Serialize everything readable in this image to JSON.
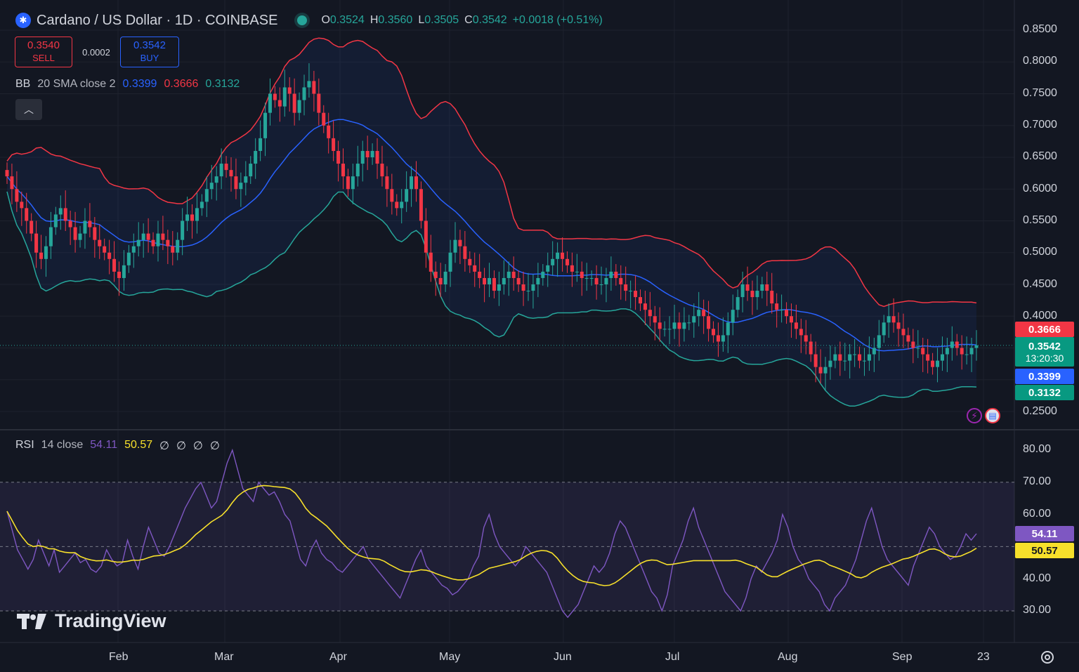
{
  "header": {
    "title": "Cardano / US Dollar · 1D · COINBASE",
    "ohlc": [
      {
        "k": "O",
        "v": "0.3524"
      },
      {
        "k": "H",
        "v": "0.3560"
      },
      {
        "k": "L",
        "v": "0.3505"
      },
      {
        "k": "C",
        "v": "0.3542"
      }
    ],
    "change": "+0.0018 (+0.51%)"
  },
  "trade": {
    "sell_price": "0.3540",
    "sell_label": "SELL",
    "spread": "0.0002",
    "buy_price": "0.3542",
    "buy_label": "BUY"
  },
  "bb": {
    "name": "BB",
    "params": "20 SMA close 2",
    "basis": "0.3399",
    "upper": "0.3666",
    "lower": "0.3132"
  },
  "collapse_icon": "chevron-up-icon",
  "rsi": {
    "name": "RSI",
    "params": "14 close",
    "value": "54.11",
    "ma": "50.57",
    "extra": [
      "∅",
      "∅",
      "∅",
      "∅"
    ]
  },
  "price_axis": [
    "0.8500",
    "0.8000",
    "0.7500",
    "0.7000",
    "0.6500",
    "0.6000",
    "0.5500",
    "0.5000",
    "0.4500",
    "0.4000",
    "0.2500"
  ],
  "rsi_axis": [
    "80.00",
    "70.00",
    "60.00",
    "40.00",
    "30.00"
  ],
  "time_axis": [
    "Feb",
    "Mar",
    "Apr",
    "May",
    "Jun",
    "Jul",
    "Aug",
    "Sep",
    "23"
  ],
  "badges": {
    "upper": "0.3666",
    "price": "0.3542",
    "countdown": "13:20:30",
    "basis": "0.3399",
    "lower": "0.3132",
    "rsi": "54.11",
    "rsi_ma": "50.57"
  },
  "logo": "TradingView",
  "colors": {
    "up": "#26a69a",
    "down": "#f23645",
    "basis": "#2962ff",
    "rsi": "#7e57c2",
    "rsi_ma": "#f7e02b",
    "bg": "#131722"
  },
  "chart_data": {
    "type": "candlestick",
    "price_range": [
      0.22,
      0.88
    ],
    "rsi_range": [
      20,
      85
    ],
    "rsi_bands": [
      30,
      70
    ],
    "closes": [
      0.62,
      0.6,
      0.58,
      0.57,
      0.55,
      0.53,
      0.5,
      0.49,
      0.51,
      0.54,
      0.56,
      0.57,
      0.55,
      0.54,
      0.52,
      0.53,
      0.55,
      0.54,
      0.52,
      0.51,
      0.5,
      0.49,
      0.47,
      0.46,
      0.48,
      0.5,
      0.51,
      0.52,
      0.53,
      0.52,
      0.51,
      0.53,
      0.52,
      0.51,
      0.5,
      0.52,
      0.55,
      0.56,
      0.55,
      0.57,
      0.58,
      0.6,
      0.61,
      0.62,
      0.64,
      0.63,
      0.62,
      0.6,
      0.61,
      0.62,
      0.64,
      0.66,
      0.68,
      0.72,
      0.75,
      0.74,
      0.73,
      0.76,
      0.75,
      0.72,
      0.74,
      0.76,
      0.77,
      0.75,
      0.72,
      0.7,
      0.68,
      0.66,
      0.64,
      0.62,
      0.6,
      0.62,
      0.64,
      0.66,
      0.65,
      0.66,
      0.64,
      0.62,
      0.6,
      0.58,
      0.57,
      0.58,
      0.6,
      0.62,
      0.6,
      0.55,
      0.5,
      0.47,
      0.46,
      0.45,
      0.47,
      0.5,
      0.52,
      0.51,
      0.49,
      0.48,
      0.47,
      0.46,
      0.45,
      0.46,
      0.44,
      0.45,
      0.46,
      0.47,
      0.46,
      0.45,
      0.44,
      0.44,
      0.45,
      0.46,
      0.47,
      0.48,
      0.49,
      0.5,
      0.49,
      0.48,
      0.47,
      0.47,
      0.46,
      0.46,
      0.46,
      0.45,
      0.45,
      0.46,
      0.47,
      0.46,
      0.45,
      0.44,
      0.44,
      0.43,
      0.42,
      0.41,
      0.4,
      0.39,
      0.38,
      0.38,
      0.38,
      0.39,
      0.38,
      0.39,
      0.39,
      0.4,
      0.41,
      0.4,
      0.38,
      0.37,
      0.36,
      0.37,
      0.39,
      0.41,
      0.43,
      0.45,
      0.44,
      0.43,
      0.44,
      0.45,
      0.44,
      0.42,
      0.41,
      0.41,
      0.4,
      0.39,
      0.38,
      0.37,
      0.36,
      0.34,
      0.32,
      0.31,
      0.32,
      0.33,
      0.34,
      0.33,
      0.33,
      0.34,
      0.34,
      0.33,
      0.33,
      0.34,
      0.35,
      0.37,
      0.39,
      0.4,
      0.39,
      0.38,
      0.37,
      0.36,
      0.35,
      0.35,
      0.34,
      0.33,
      0.32,
      0.33,
      0.34,
      0.35,
      0.36,
      0.35,
      0.34,
      0.34,
      0.35,
      0.354
    ],
    "rsi_values": [
      61,
      55,
      49,
      46,
      43,
      46,
      52,
      48,
      44,
      49,
      42,
      44,
      46,
      48,
      45,
      46,
      43,
      42,
      44,
      49,
      46,
      44,
      45,
      52,
      47,
      43,
      50,
      56,
      52,
      48,
      47,
      50,
      54,
      58,
      62,
      65,
      68,
      70,
      66,
      62,
      64,
      70,
      76,
      80,
      74,
      68,
      66,
      64,
      70,
      68,
      66,
      67,
      64,
      60,
      58,
      52,
      46,
      44,
      49,
      52,
      48,
      46,
      45,
      43,
      42,
      44,
      46,
      48,
      50,
      46,
      44,
      42,
      40,
      38,
      36,
      34,
      38,
      42,
      46,
      49,
      44,
      42,
      40,
      38,
      37,
      35,
      36,
      38,
      40,
      44,
      47,
      56,
      60,
      54,
      50,
      48,
      46,
      44,
      46,
      50,
      48,
      46,
      44,
      42,
      38,
      34,
      30,
      28,
      30,
      32,
      36,
      40,
      44,
      42,
      44,
      48,
      54,
      58,
      56,
      52,
      48,
      44,
      40,
      36,
      34,
      30,
      35,
      44,
      48,
      52,
      58,
      62,
      56,
      52,
      48,
      44,
      40,
      36,
      34,
      32,
      30,
      34,
      40,
      44,
      42,
      45,
      48,
      52,
      60,
      56,
      50,
      46,
      44,
      40,
      38,
      36,
      32,
      30,
      34,
      36,
      38,
      42,
      46,
      52,
      58,
      62,
      56,
      50,
      46,
      44,
      42,
      40,
      38,
      44,
      48,
      52,
      56,
      54,
      50,
      48,
      46,
      47,
      50,
      54,
      52,
      54
    ],
    "bb_upper_anchor": 0.3666,
    "bb_basis_anchor": 0.3399,
    "bb_lower_anchor": 0.3132
  }
}
